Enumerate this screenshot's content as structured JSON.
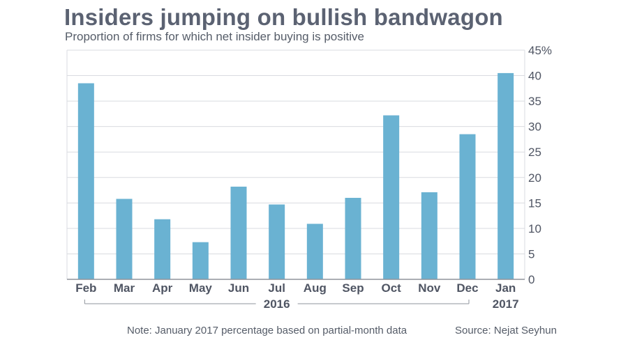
{
  "title": "Insiders jumping on bullish bandwagon",
  "subtitle": "Proportion of firms for which net insider buying is positive",
  "note": "Note: January 2017 percentage based on partial-month data",
  "source": "Source: Nejat Seyhun",
  "colors": {
    "bar": "#6ab2d2",
    "grid": "#d9dbe0",
    "axis": "#8f949c"
  },
  "chart_data": {
    "type": "bar",
    "title": "Insiders jumping on bullish bandwagon",
    "subtitle": "Proportion of firms for which net insider buying is positive",
    "categories": [
      "Feb",
      "Mar",
      "Apr",
      "May",
      "Jun",
      "Jul",
      "Aug",
      "Sep",
      "Oct",
      "Nov",
      "Dec",
      "Jan"
    ],
    "values": [
      38.5,
      15.8,
      11.8,
      7.3,
      18.2,
      14.7,
      10.9,
      16.0,
      32.2,
      17.1,
      28.5,
      40.5
    ],
    "year_groups": [
      {
        "label": "2016",
        "from": 0,
        "to": 10
      },
      {
        "label": "2017",
        "from": 11,
        "to": 11
      }
    ],
    "ylim": [
      0,
      45
    ],
    "yticks": [
      0,
      5,
      10,
      15,
      20,
      25,
      30,
      35,
      40,
      45
    ],
    "ytick_labels": [
      "0",
      "5",
      "10",
      "15",
      "20",
      "25",
      "30",
      "35",
      "40",
      "45%"
    ],
    "y_axis_side": "right",
    "grid": true
  }
}
